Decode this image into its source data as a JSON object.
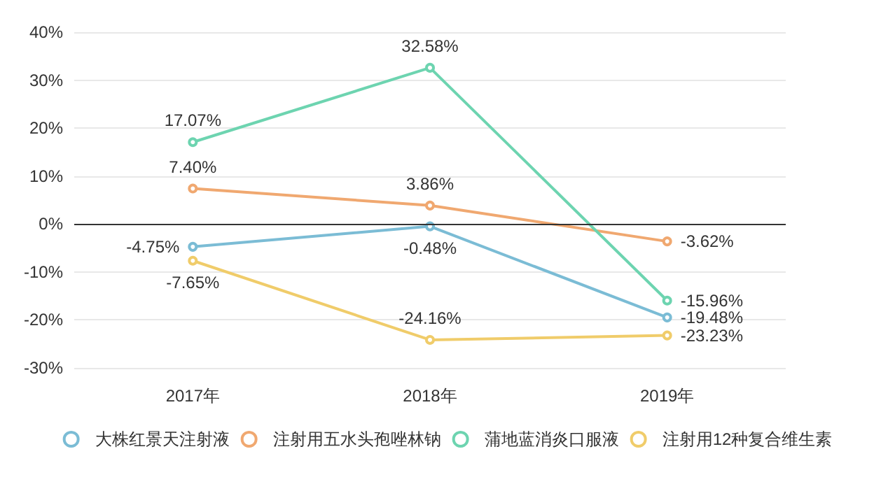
{
  "chart_data": {
    "type": "line",
    "categories": [
      "2017年",
      "2018年",
      "2019年"
    ],
    "series": [
      {
        "name": "大株红景天注射液",
        "color": "#7bbcd5",
        "values": [
          -4.75,
          -0.48,
          -19.48
        ],
        "value_labels": [
          "-4.75%",
          "-0.48%",
          "-19.48%"
        ]
      },
      {
        "name": "注射用五水头孢唑林钠",
        "color": "#f0a870",
        "values": [
          7.4,
          3.86,
          -3.62
        ],
        "value_labels": [
          "7.40%",
          "3.86%",
          "-3.62%"
        ]
      },
      {
        "name": "蒲地蓝消炎口服液",
        "color": "#6dd4b0",
        "values": [
          17.07,
          32.58,
          -15.96
        ],
        "value_labels": [
          "17.07%",
          "32.58%",
          "-15.96%"
        ]
      },
      {
        "name": "注射用12种复合维生素",
        "color": "#f0cc6a",
        "values": [
          -7.65,
          -24.16,
          -23.23
        ],
        "value_labels": [
          "-7.65%",
          "-24.16%",
          "-23.23%"
        ]
      }
    ],
    "ylim": [
      -30,
      40
    ],
    "yticks": [
      {
        "value": -30,
        "label": "-30%"
      },
      {
        "value": -20,
        "label": "-20%"
      },
      {
        "value": -10,
        "label": "-10%"
      },
      {
        "value": 0,
        "label": "0%"
      },
      {
        "value": 10,
        "label": "10%"
      },
      {
        "value": 20,
        "label": "20%"
      },
      {
        "value": 30,
        "label": "30%"
      },
      {
        "value": 40,
        "label": "40%"
      }
    ],
    "ref_lines": [
      {
        "axis": "y",
        "value": 0,
        "color": "#333333"
      }
    ],
    "grid": "y",
    "legend": "bottom",
    "marker": "circle",
    "line_style": "solid"
  }
}
